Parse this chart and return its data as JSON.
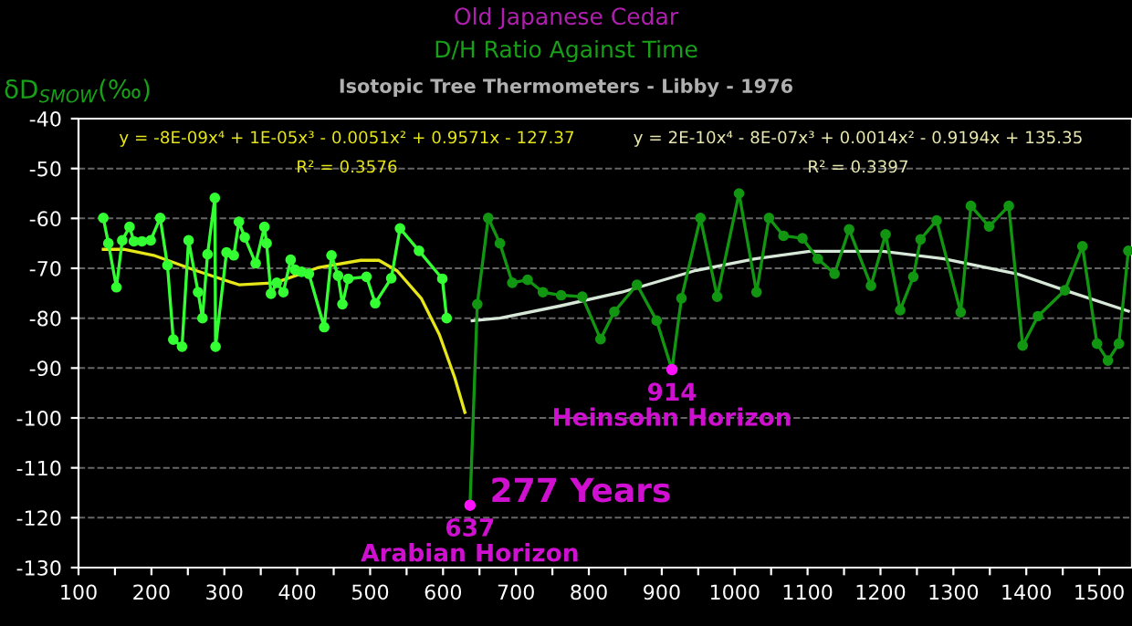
{
  "chart_data": {
    "type": "line",
    "title": "Old Japanese Cedar",
    "subtitle": "D/H Ratio Against Time",
    "ylabel": "δD$_{SMOW}$(‰)",
    "annotations": [
      "Isotopic Tree Thermometers - Libby - 1976",
      "y = -8E-09x⁴ + 1E-05x³ - 0.0051x² + 0.9571x - 127.37",
      "R² = 0.3576",
      "y = 2E-10x⁴ - 8E-07x³ + 0.0014x² - 0.9194x + 135.35",
      "R² = 0.3397",
      "277 Years",
      {
        "text": "637\nArabian Horizon",
        "x": 637,
        "y": -117.5
      },
      {
        "text": "914\nHeinsohn Horizon",
        "x": 914,
        "y": -90.3
      }
    ],
    "series": [
      {
        "color": "#33ff33",
        "marker": "circle",
        "x": [
          134,
          141,
          152,
          160,
          170,
          176,
          187,
          199,
          212,
          222,
          230,
          242,
          251,
          264,
          270,
          277,
          287,
          288,
          303,
          313,
          320,
          328,
          343,
          355,
          358,
          364,
          372,
          381,
          391,
          397,
          406,
          416,
          437,
          447,
          456,
          462,
          470,
          495,
          507,
          529,
          541,
          567,
          599,
          605
        ],
        "values": [
          -59.9,
          -65.0,
          -73.8,
          -64.4,
          -61.7,
          -64.6,
          -64.6,
          -64.4,
          -59.9,
          -69.4,
          -84.3,
          -85.7,
          -64.4,
          -74.8,
          -80.0,
          -67.2,
          -55.9,
          -85.7,
          -66.8,
          -67.4,
          -60.7,
          -63.8,
          -69.0,
          -61.7,
          -65.0,
          -75.1,
          -72.9,
          -74.8,
          -68.3,
          -70.3,
          -70.7,
          -71.1,
          -81.8,
          -67.4,
          -71.5,
          -77.2,
          -72.1,
          -71.7,
          -77.0,
          -72.0,
          -62.0,
          -66.5,
          -72.1,
          -80.0
        ]
      },
      {
        "color": "#129612",
        "marker": "circle",
        "x": [
          637,
          647,
          662,
          678,
          695,
          716,
          737,
          762,
          791,
          816,
          835,
          866,
          893,
          914,
          927,
          953,
          976,
          1006,
          1030,
          1047,
          1067,
          1093,
          1114,
          1137,
          1157,
          1187,
          1207,
          1227,
          1245,
          1255,
          1277,
          1310,
          1324,
          1349,
          1376,
          1395,
          1416,
          1453,
          1477,
          1497,
          1512,
          1527,
          1540
        ],
        "values": [
          -117.5,
          -77.2,
          -59.9,
          -65.0,
          -72.9,
          -72.3,
          -74.8,
          -75.4,
          -75.7,
          -84.2,
          -78.7,
          -73.3,
          -80.5,
          -90.3,
          -76.0,
          -59.9,
          -75.7,
          -55.0,
          -74.8,
          -59.9,
          -63.5,
          -64.0,
          -68.1,
          -71.1,
          -62.2,
          -73.5,
          -63.2,
          -78.4,
          -71.7,
          -64.2,
          -60.4,
          -78.8,
          -57.5,
          -61.6,
          -57.5,
          -85.5,
          -79.6,
          -74.4,
          -65.6,
          -85.1,
          -88.5,
          -85.1,
          -66.5
        ]
      },
      {
        "color": "#e6e619",
        "marker": "none",
        "x": [
          134,
          162,
          203,
          262,
          320,
          370,
          428,
          487,
          512,
          537,
          570,
          595,
          616,
          630
        ],
        "values": [
          -66.2,
          -66.2,
          -67.4,
          -70.5,
          -73.3,
          -72.9,
          -69.9,
          -68.4,
          -68.4,
          -70.5,
          -76.0,
          -83.3,
          -91.9,
          -98.9
        ]
      },
      {
        "color": "#d8e8d8",
        "marker": "none",
        "x": [
          640,
          678,
          762,
          845,
          945,
          1028,
          1103,
          1203,
          1287,
          1387,
          1453,
          1540
        ],
        "values": [
          -80.5,
          -80.0,
          -77.5,
          -74.8,
          -70.5,
          -68.1,
          -66.6,
          -66.6,
          -68.1,
          -71.1,
          -74.4,
          -78.6
        ]
      }
    ],
    "xlim": [
      100,
      1545
    ],
    "ylim": [
      -130,
      -40
    ],
    "xticks": [
      100,
      {
        "value": 150,
        "label": null
      },
      200,
      {
        "value": 250,
        "label": null
      },
      300,
      {
        "value": 350,
        "label": null
      },
      400,
      {
        "value": 450,
        "label": null
      },
      500,
      {
        "value": 550,
        "label": null
      },
      600,
      {
        "value": 650,
        "label": null
      },
      700,
      {
        "value": 750,
        "label": null
      },
      800,
      {
        "value": 850,
        "label": null
      },
      900,
      {
        "value": 950,
        "label": null
      },
      1000,
      {
        "value": 1050,
        "label": null
      },
      1100,
      {
        "value": 1150,
        "label": null
      },
      1200,
      {
        "value": 1250,
        "label": null
      },
      1300,
      {
        "value": 1350,
        "label": null
      },
      1400,
      {
        "value": 1450,
        "label": null
      },
      1500
    ],
    "yticks": [
      -130,
      -120,
      -110,
      -100,
      -90,
      -80,
      -70,
      -60,
      -50,
      -40
    ],
    "grid": "y",
    "legend": false
  }
}
